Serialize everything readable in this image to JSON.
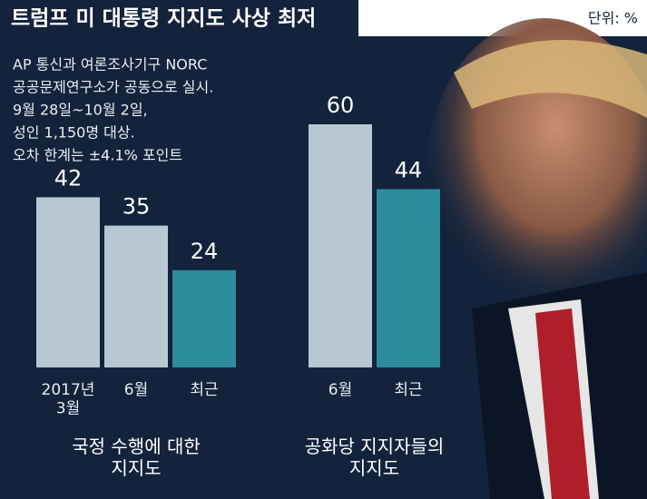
{
  "title": "트럼프 미 대통령 지지도 사상 최저",
  "unit": "단위: %",
  "note": [
    "AP 통신과 여론조사기구 NORC",
    "공공문제연구소가 공동으로 실시.",
    "9월 28일~10월 2일,",
    "성인 1,150명 대상.",
    "오차 한계는 ±4.1% 포인트"
  ],
  "chart_data": [
    {
      "type": "bar",
      "title": "국정 수행에 대한\n지지도",
      "categories": [
        "2017년\n3월",
        "6월",
        "최근"
      ],
      "values": [
        42,
        35,
        24
      ],
      "colors": [
        "#b8c8d2",
        "#b8c8d2",
        "#2b8c9c"
      ],
      "ylim": [
        0,
        60
      ]
    },
    {
      "type": "bar",
      "title": "공화당 지지자들의\n지지도",
      "categories": [
        "6월",
        "최근"
      ],
      "values": [
        60,
        44
      ],
      "colors": [
        "#b8c8d2",
        "#2b8c9c"
      ],
      "ylim": [
        0,
        60
      ]
    }
  ]
}
